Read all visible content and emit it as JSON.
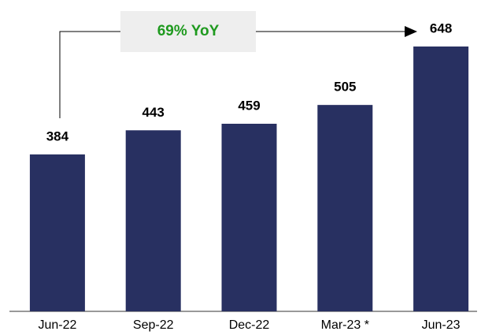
{
  "chart_data": {
    "type": "bar",
    "categories": [
      "Jun-22",
      "Sep-22",
      "Dec-22",
      "Mar-23 *",
      "Jun-23"
    ],
    "values": [
      384,
      443,
      459,
      505,
      648
    ],
    "color": "#283061",
    "annotation": "69% YoY",
    "annotation_color": "#1f9a1f"
  }
}
